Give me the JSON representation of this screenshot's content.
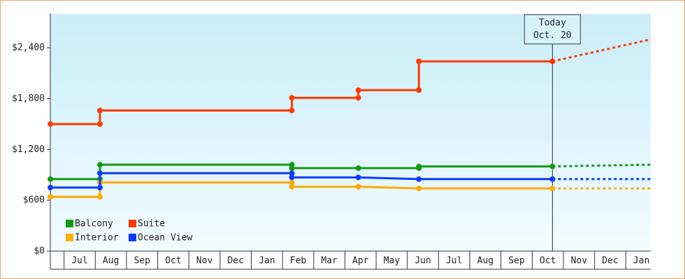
{
  "chart_data": {
    "type": "step-line",
    "xlim": [
      -0.94,
      18.3
    ],
    "xticks": [
      {
        "value": 0,
        "label": "Jul"
      },
      {
        "value": 1,
        "label": "Aug"
      },
      {
        "value": 2,
        "label": "Sep"
      },
      {
        "value": 3,
        "label": "Oct"
      },
      {
        "value": 4,
        "label": "Nov"
      },
      {
        "value": 5,
        "label": "Dec"
      },
      {
        "value": 6,
        "label": "Jan"
      },
      {
        "value": 7,
        "label": "Feb"
      },
      {
        "value": 8,
        "label": "Mar"
      },
      {
        "value": 9,
        "label": "Apr"
      },
      {
        "value": 10,
        "label": "May"
      },
      {
        "value": 11,
        "label": "Jun"
      },
      {
        "value": 12,
        "label": "Jul"
      },
      {
        "value": 13,
        "label": "Aug"
      },
      {
        "value": 14,
        "label": "Sep"
      },
      {
        "value": 15,
        "label": "Oct"
      },
      {
        "value": 16,
        "label": "Nov"
      },
      {
        "value": 17,
        "label": "Dec"
      },
      {
        "value": 18,
        "label": "Jan"
      }
    ],
    "ylim": [
      0,
      2800
    ],
    "yticks": [
      {
        "value": 0,
        "label": "$0"
      },
      {
        "value": 600,
        "label": "$600"
      },
      {
        "value": 1200,
        "label": "$1,200"
      },
      {
        "value": 1800,
        "label": "$1,800"
      },
      {
        "value": 2400,
        "label": "$2,400"
      }
    ],
    "today": {
      "x": 15.15,
      "label": [
        "Today",
        "Oct. 20"
      ]
    },
    "series": [
      {
        "name": "Balcony",
        "color": "#139a13",
        "x": [
          -0.94,
          0.65,
          0.65,
          6.8,
          6.8,
          8.93,
          10.87,
          10.87,
          15.15
        ],
        "values": [
          850,
          850,
          1020,
          1020,
          980,
          980,
          980,
          1000,
          1000
        ],
        "projected_x": [
          15.15,
          18.3
        ],
        "projected_values": [
          1000,
          1020
        ]
      },
      {
        "name": "Suite",
        "color": "#ff3a00",
        "x": [
          -0.94,
          0.65,
          0.65,
          6.8,
          6.8,
          8.93,
          8.93,
          10.87,
          10.87,
          15.15
        ],
        "values": [
          1500,
          1500,
          1660,
          1660,
          1810,
          1810,
          1900,
          1900,
          2240,
          2240
        ],
        "projected_x": [
          15.15,
          18.3
        ],
        "projected_values": [
          2240,
          2500
        ]
      },
      {
        "name": "Interior",
        "color": "#ffaa00",
        "x": [
          -0.94,
          0.65,
          0.65,
          6.8,
          6.8,
          8.93,
          10.87,
          15.15
        ],
        "values": [
          640,
          640,
          810,
          810,
          760,
          760,
          740,
          740
        ],
        "projected_x": [
          15.15,
          18.3
        ],
        "projected_values": [
          740,
          740
        ]
      },
      {
        "name": "Ocean View",
        "color": "#0a3cff",
        "x": [
          -0.94,
          0.65,
          0.65,
          6.8,
          6.8,
          8.93,
          10.87,
          15.15
        ],
        "values": [
          750,
          750,
          920,
          920,
          870,
          870,
          850,
          850
        ],
        "projected_x": [
          15.15,
          18.3
        ],
        "projected_values": [
          850,
          850
        ]
      }
    ]
  }
}
